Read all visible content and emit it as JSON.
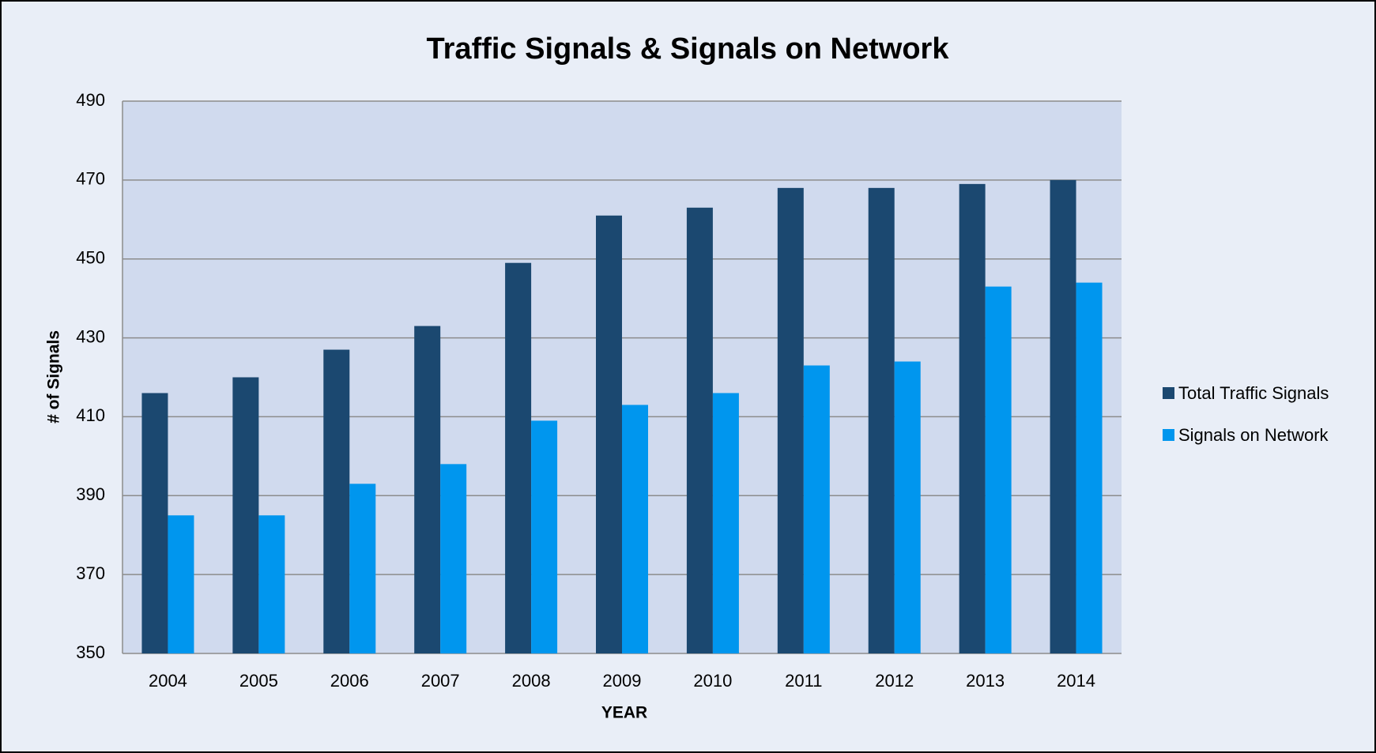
{
  "chart_data": {
    "type": "bar",
    "title": "Traffic Signals & Signals on Network",
    "x_label": "YEAR",
    "y_label": "# of Signals",
    "categories": [
      "2004",
      "2005",
      "2006",
      "2007",
      "2008",
      "2009",
      "2010",
      "2011",
      "2012",
      "2013",
      "2014"
    ],
    "series": [
      {
        "name": "Total Traffic Signals",
        "color": "#1b4870",
        "values": [
          416,
          420,
          427,
          433,
          449,
          461,
          463,
          468,
          468,
          469,
          470
        ]
      },
      {
        "name": "Signals on Network",
        "color": "#0096ee",
        "values": [
          385,
          385,
          393,
          398,
          409,
          413,
          416,
          423,
          424,
          443,
          444
        ]
      }
    ],
    "ylim": [
      350,
      490
    ],
    "yticks": [
      350,
      370,
      390,
      410,
      430,
      450,
      470,
      490
    ],
    "grid": true,
    "legend": "right"
  }
}
